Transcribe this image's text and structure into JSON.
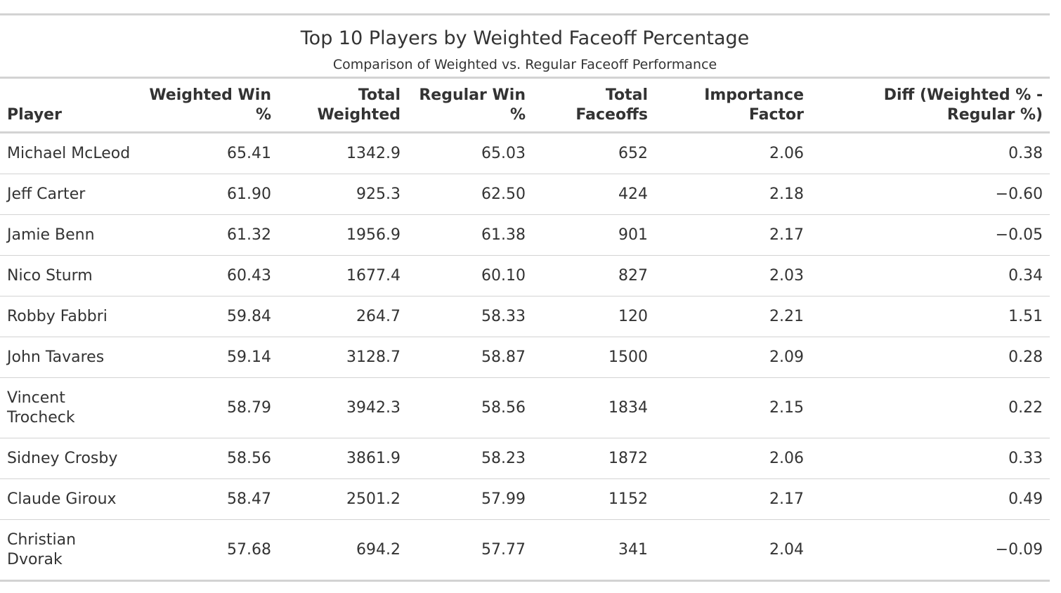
{
  "chart_data": {
    "type": "table",
    "title": "Top 10 Players by Weighted Faceoff Percentage",
    "subtitle": "Comparison of Weighted vs. Regular Faceoff Performance",
    "columns": [
      "Player",
      "Weighted Win %",
      "Total Weighted",
      "Regular Win %",
      "Total Faceoffs",
      "Importance Factor",
      "Diff (Weighted % - Regular %)"
    ],
    "rows": [
      [
        "Michael McLeod",
        "65.41",
        "1342.9",
        "65.03",
        "652",
        "2.06",
        "0.38"
      ],
      [
        "Jeff Carter",
        "61.90",
        "925.3",
        "62.50",
        "424",
        "2.18",
        "−0.60"
      ],
      [
        "Jamie Benn",
        "61.32",
        "1956.9",
        "61.38",
        "901",
        "2.17",
        "−0.05"
      ],
      [
        "Nico Sturm",
        "60.43",
        "1677.4",
        "60.10",
        "827",
        "2.03",
        "0.34"
      ],
      [
        "Robby Fabbri",
        "59.84",
        "264.7",
        "58.33",
        "120",
        "2.21",
        "1.51"
      ],
      [
        "John Tavares",
        "59.14",
        "3128.7",
        "58.87",
        "1500",
        "2.09",
        "0.28"
      ],
      [
        "Vincent Trocheck",
        "58.79",
        "3942.3",
        "58.56",
        "1834",
        "2.15",
        "0.22"
      ],
      [
        "Sidney Crosby",
        "58.56",
        "3861.9",
        "58.23",
        "1872",
        "2.06",
        "0.33"
      ],
      [
        "Claude Giroux",
        "58.47",
        "2501.2",
        "57.99",
        "1152",
        "2.17",
        "0.49"
      ],
      [
        "Christian Dvorak",
        "57.68",
        "694.2",
        "57.77",
        "341",
        "2.04",
        "−0.09"
      ]
    ]
  },
  "colors": {
    "text": "#333333",
    "rule": "#d3d3d3",
    "background": "#ffffff"
  }
}
